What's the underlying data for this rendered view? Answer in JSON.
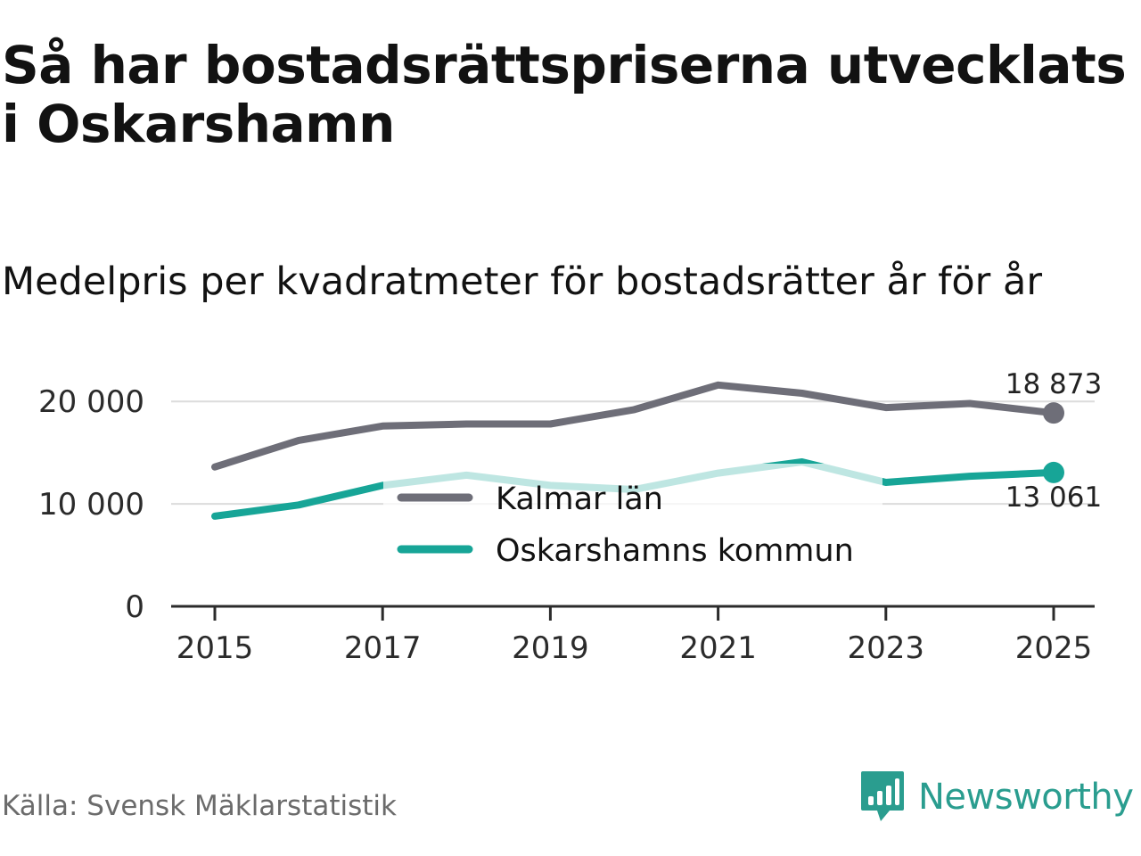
{
  "title": "Så har bostadsrättspriserna utvecklats i Oskarshamn",
  "subtitle": "Medelpris per kvadratmeter för bostadsrätter år för år",
  "source": "Källa: Svensk Mäklarstatistik",
  "brand": {
    "name": "Newsworthy",
    "color": "#2a9d8f"
  },
  "chart_data": {
    "type": "line",
    "title": "Så har bostadsrättspriserna utvecklats i Oskarshamn",
    "subtitle": "Medelpris per kvadratmeter för bostadsrätter år för år",
    "xlabel": "",
    "ylabel": "",
    "x": [
      2015,
      2016,
      2017,
      2018,
      2019,
      2020,
      2021,
      2022,
      2023,
      2024,
      2025
    ],
    "xticks": [
      "2015",
      "2017",
      "2019",
      "2021",
      "2023",
      "2025"
    ],
    "ylim": [
      0,
      23500
    ],
    "yticks": [
      0,
      10000,
      20000
    ],
    "ytick_labels": [
      "0",
      "10 000",
      "20 000"
    ],
    "grid": true,
    "legend_position": "center",
    "series": [
      {
        "name": "Kalmar län",
        "color": "#6e6e78",
        "values": [
          13600,
          16200,
          17600,
          17800,
          17800,
          19200,
          21600,
          20800,
          19400,
          19800,
          18873
        ],
        "end_label": "18 873"
      },
      {
        "name": "Oskarshamns kommun",
        "color": "#17a597",
        "values": [
          8800,
          9900,
          11800,
          12800,
          11800,
          11400,
          13000,
          14100,
          12100,
          12700,
          13061
        ],
        "end_label": "13 061"
      }
    ]
  }
}
